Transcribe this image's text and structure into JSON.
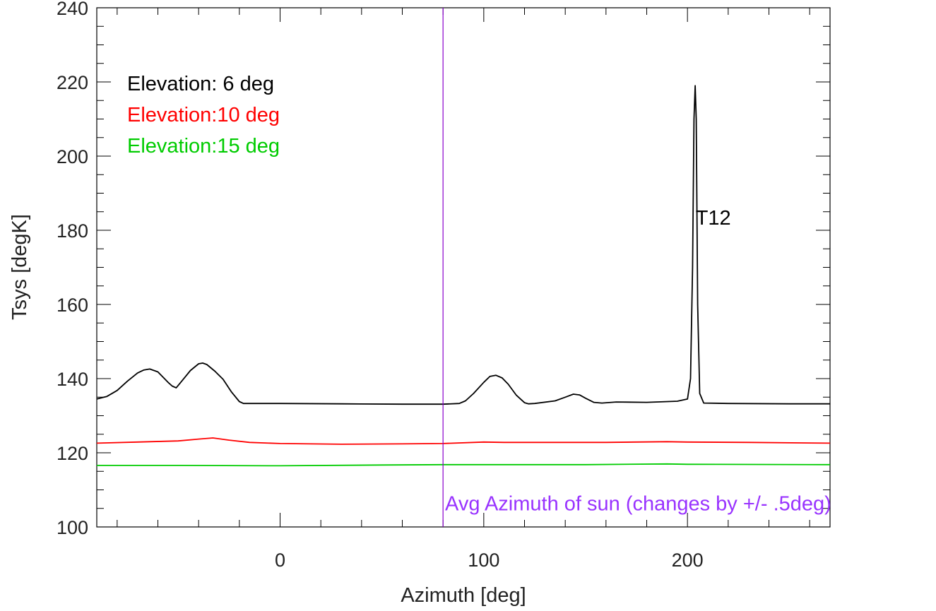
{
  "chart_data": {
    "type": "line",
    "xlabel": "Azimuth [deg]",
    "ylabel": "Tsys [degK]",
    "xlim": [
      -90,
      270
    ],
    "ylim": [
      100,
      240
    ],
    "xticks": [
      0,
      100,
      200
    ],
    "yticks": [
      100,
      120,
      140,
      160,
      180,
      200,
      220,
      240
    ],
    "x_minor_step": 20,
    "y_minor_step": 5,
    "grid": false,
    "legend_position": "top-left",
    "series": [
      {
        "name": "Elevation: 6 deg",
        "color": "#000000",
        "x": [
          -90,
          -85,
          -80,
          -75,
          -70,
          -67,
          -64,
          -60,
          -55,
          -53,
          -51,
          -48,
          -44,
          -40,
          -38,
          -36,
          -32,
          -28,
          -24,
          -20,
          -18,
          0,
          30,
          60,
          80,
          88,
          91,
          95,
          100,
          103,
          106,
          109,
          112,
          116,
          120,
          122,
          125,
          135,
          140,
          144,
          147,
          150,
          154,
          158,
          165,
          180,
          195,
          200,
          201.5,
          202.5,
          203.2,
          203.8,
          204.3,
          205,
          206,
          208,
          220,
          250,
          270
        ],
        "y": [
          134.5,
          135.2,
          136.8,
          139.3,
          141.5,
          142.3,
          142.6,
          141.8,
          139.0,
          138.0,
          137.5,
          139.5,
          142.2,
          144.0,
          144.2,
          143.8,
          142.0,
          139.8,
          136.5,
          133.8,
          133.3,
          133.3,
          133.2,
          133.1,
          133.1,
          133.3,
          134.0,
          136.0,
          139.0,
          140.6,
          140.9,
          140.2,
          138.5,
          135.5,
          133.5,
          133.2,
          133.3,
          134.0,
          135.0,
          135.8,
          135.6,
          134.7,
          133.6,
          133.4,
          133.7,
          133.6,
          133.9,
          134.5,
          140.0,
          170.0,
          210.0,
          219.0,
          210.0,
          160.0,
          136.0,
          133.4,
          133.3,
          133.2,
          133.2
        ]
      },
      {
        "name": "Elevation:10 deg",
        "color": "#ff0000",
        "x": [
          -90,
          -70,
          -50,
          -40,
          -33,
          -25,
          -15,
          0,
          30,
          60,
          80,
          100,
          110,
          130,
          160,
          190,
          200,
          230,
          270
        ],
        "y": [
          122.6,
          122.9,
          123.2,
          123.7,
          124.0,
          123.4,
          122.8,
          122.5,
          122.3,
          122.4,
          122.5,
          122.9,
          122.8,
          122.8,
          122.8,
          123.0,
          122.9,
          122.8,
          122.6
        ]
      },
      {
        "name": "Elevation:15 deg",
        "color": "#00cc00",
        "x": [
          -90,
          -50,
          0,
          50,
          80,
          100,
          150,
          190,
          200,
          270
        ],
        "y": [
          116.6,
          116.6,
          116.5,
          116.7,
          116.8,
          116.8,
          116.8,
          117.0,
          116.9,
          116.8
        ]
      }
    ],
    "vline": {
      "x": 80,
      "color": "#8800cc"
    },
    "annotations": [
      {
        "text": "T12",
        "x": 204,
        "y": 181.5,
        "color": "#000000"
      },
      {
        "text": "Avg Azimuth of sun (changes by +/- .5deg)",
        "x": 81,
        "y": 104.5,
        "color": "#9933ff"
      }
    ]
  }
}
